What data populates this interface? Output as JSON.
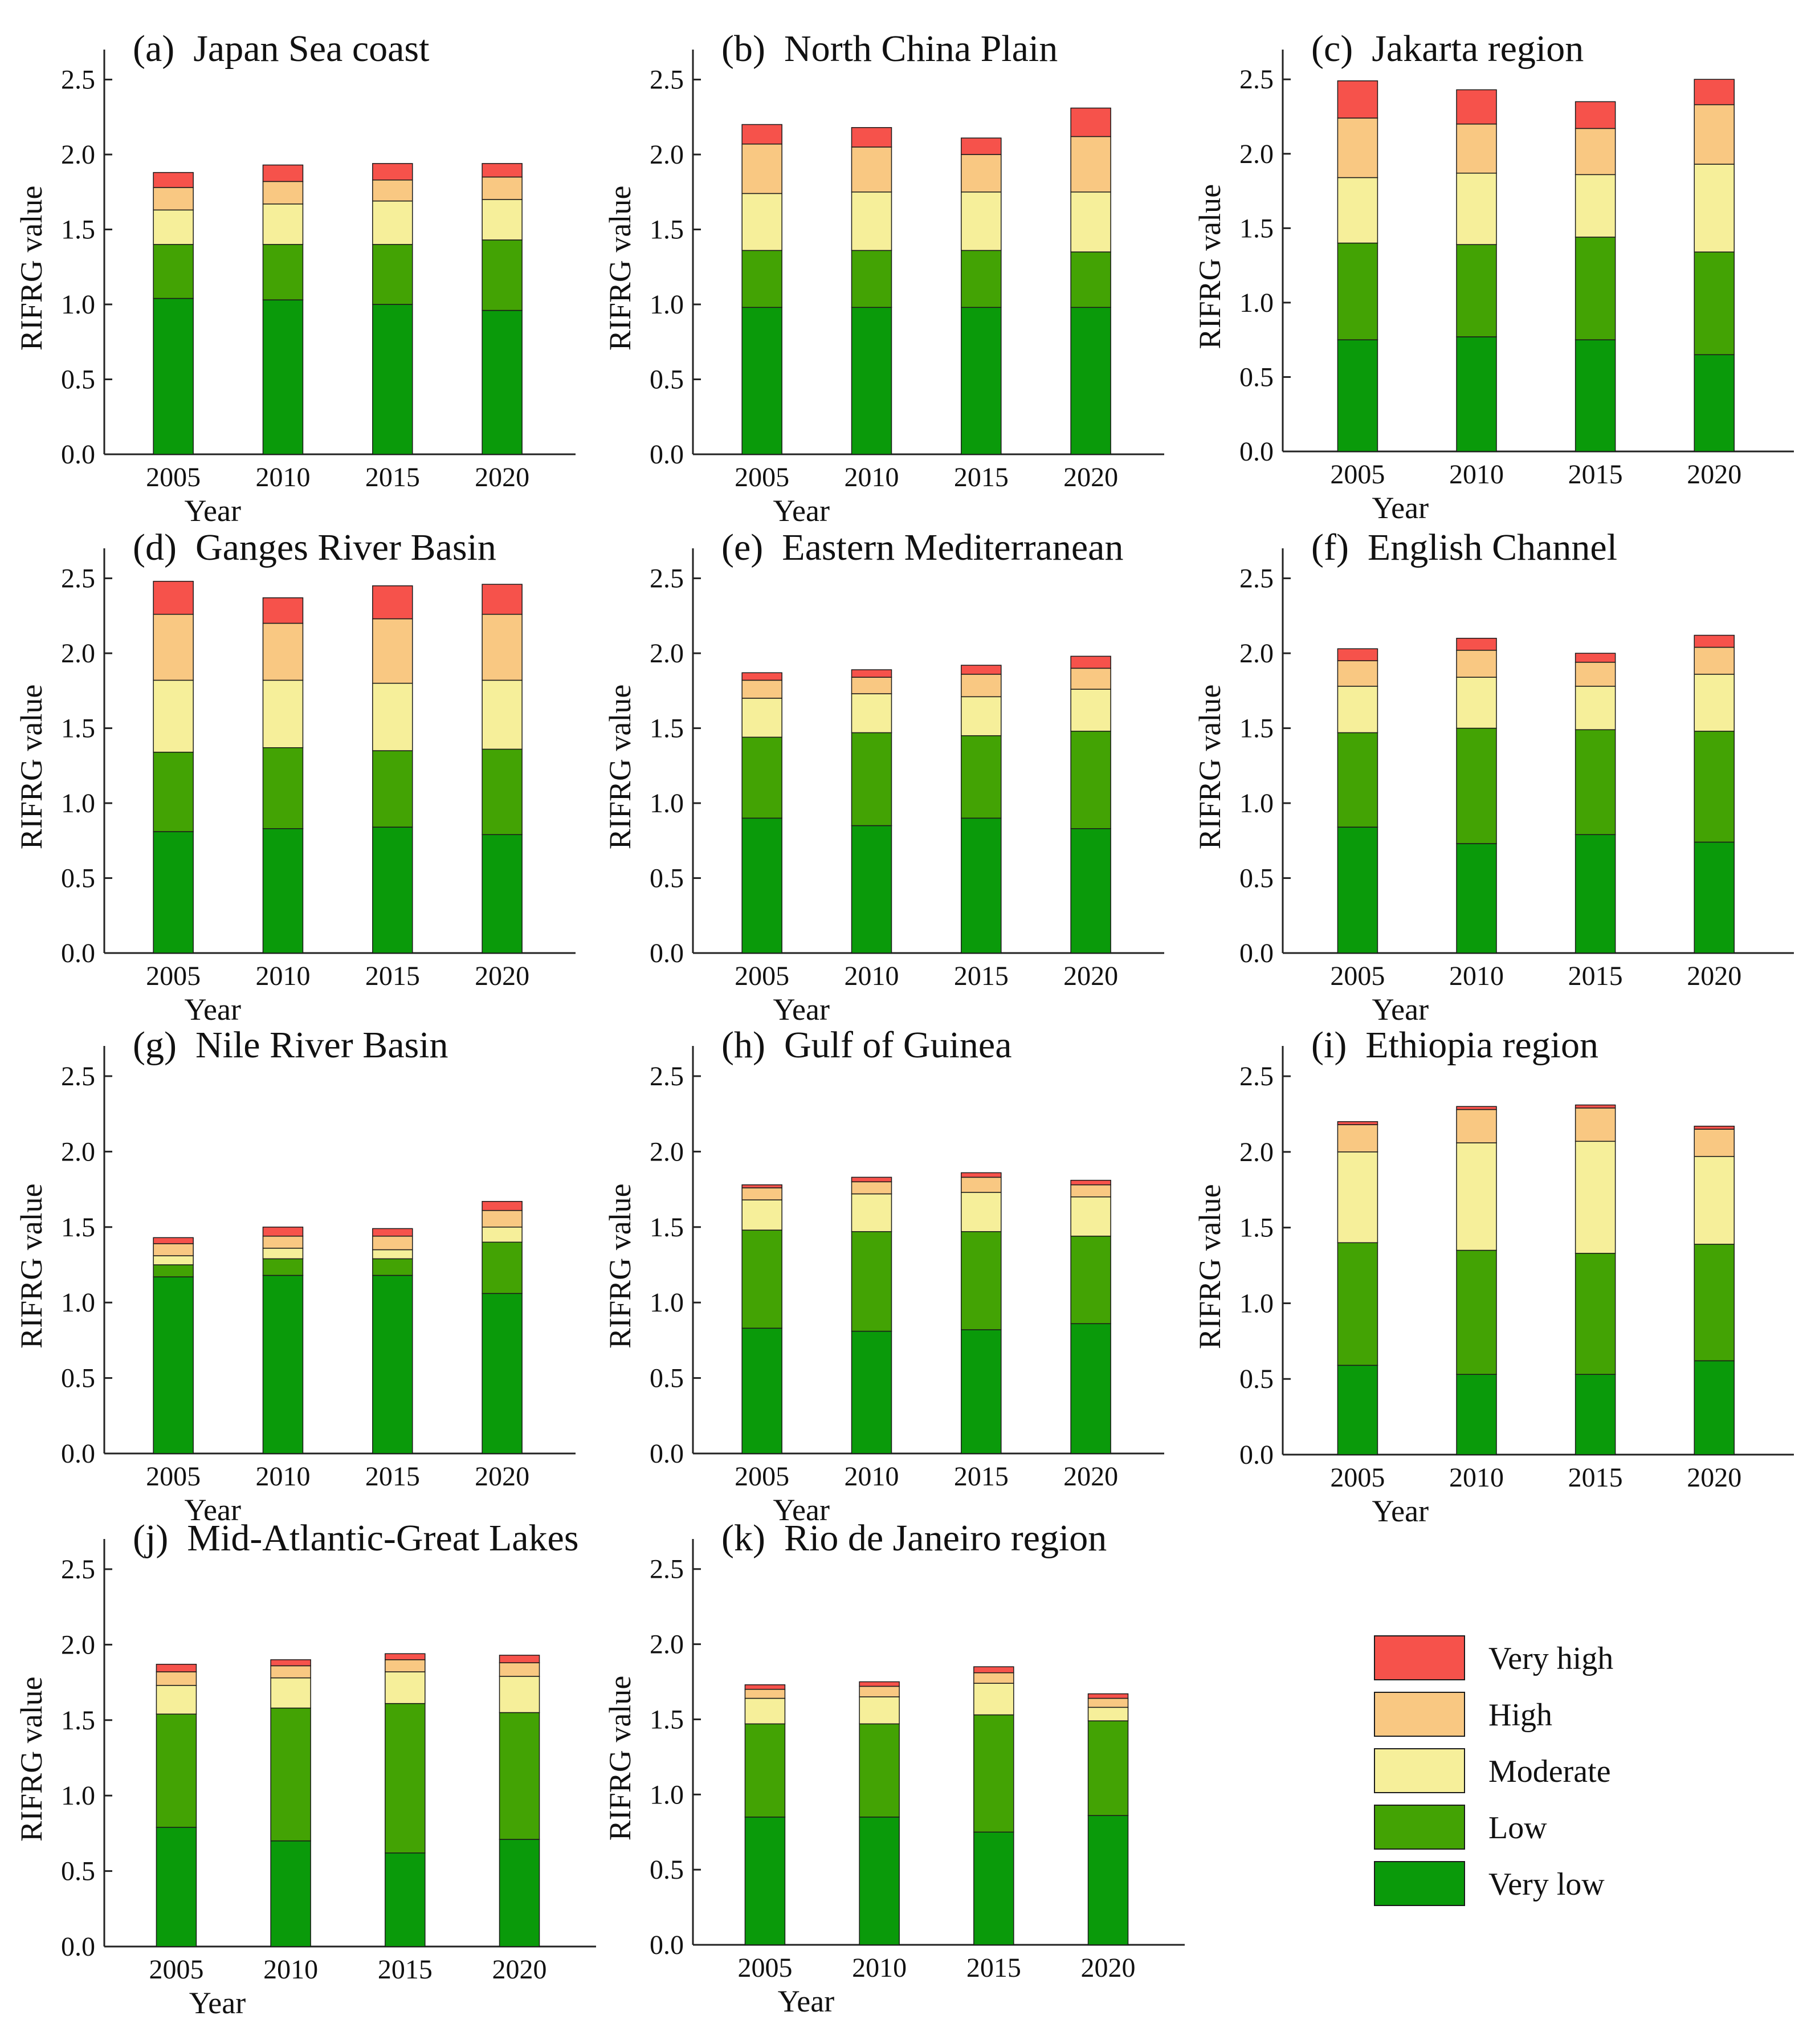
{
  "figure": {
    "stack_order": [
      "Very low",
      "Low",
      "Moderate",
      "High",
      "Very high"
    ],
    "colors": {
      "Very low": "#0a9a0a",
      "Low": "#43a304",
      "Moderate": "#f6ef9a",
      "High": "#f9c882",
      "Very high": "#f6524b"
    },
    "legend": [
      {
        "label": "Very high",
        "color": "#f6524b"
      },
      {
        "label": "High",
        "color": "#f9c882"
      },
      {
        "label": "Moderate",
        "color": "#f6ef9a"
      },
      {
        "label": "Low",
        "color": "#43a304"
      },
      {
        "label": "Very low",
        "color": "#0a9a0a"
      }
    ]
  },
  "chart_data": [
    {
      "type": "bar",
      "stacked": true,
      "title": "(a)  Japan Sea coast",
      "xlabel": "Year",
      "ylabel": "RIFRG value",
      "ylim": [
        0,
        2.7
      ],
      "yticks": [
        "0.0",
        "0.5",
        "1.0",
        "1.5",
        "2.0",
        "2.5"
      ],
      "categories": [
        "2005",
        "2010",
        "2015",
        "2020"
      ],
      "series": [
        {
          "name": "Very low",
          "values": [
            1.04,
            1.03,
            1.0,
            0.96
          ]
        },
        {
          "name": "Low",
          "values": [
            0.36,
            0.37,
            0.4,
            0.47
          ]
        },
        {
          "name": "Moderate",
          "values": [
            0.23,
            0.27,
            0.29,
            0.27
          ]
        },
        {
          "name": "High",
          "values": [
            0.15,
            0.15,
            0.14,
            0.15
          ]
        },
        {
          "name": "Very high",
          "values": [
            0.1,
            0.11,
            0.11,
            0.09
          ]
        }
      ]
    },
    {
      "type": "bar",
      "stacked": true,
      "title": "(b)  North China Plain",
      "xlabel": "Year",
      "ylabel": "RIFRG value",
      "ylim": [
        0,
        2.7
      ],
      "yticks": [
        "0.0",
        "0.5",
        "1.0",
        "1.5",
        "2.0",
        "2.5"
      ],
      "categories": [
        "2005",
        "2010",
        "2015",
        "2020"
      ],
      "series": [
        {
          "name": "Very low",
          "values": [
            0.98,
            0.98,
            0.98,
            0.98
          ]
        },
        {
          "name": "Low",
          "values": [
            0.38,
            0.38,
            0.38,
            0.37
          ]
        },
        {
          "name": "Moderate",
          "values": [
            0.38,
            0.39,
            0.39,
            0.4
          ]
        },
        {
          "name": "High",
          "values": [
            0.33,
            0.3,
            0.25,
            0.37
          ]
        },
        {
          "name": "Very high",
          "values": [
            0.13,
            0.13,
            0.11,
            0.19
          ]
        }
      ]
    },
    {
      "type": "bar",
      "stacked": true,
      "title": "(c)  Jakarta region",
      "xlabel": "Year",
      "ylabel": "RIFRG value",
      "ylim": [
        0,
        2.7
      ],
      "yticks": [
        "0.0",
        "0.5",
        "1.0",
        "1.5",
        "2.0",
        "2.5"
      ],
      "categories": [
        "2005",
        "2010",
        "2015",
        "2020"
      ],
      "series": [
        {
          "name": "Very low",
          "values": [
            0.75,
            0.77,
            0.75,
            0.65
          ]
        },
        {
          "name": "Low",
          "values": [
            0.65,
            0.62,
            0.69,
            0.69
          ]
        },
        {
          "name": "Moderate",
          "values": [
            0.44,
            0.48,
            0.42,
            0.59
          ]
        },
        {
          "name": "High",
          "values": [
            0.4,
            0.33,
            0.31,
            0.4
          ]
        },
        {
          "name": "Very high",
          "values": [
            0.25,
            0.23,
            0.18,
            0.17
          ]
        }
      ]
    },
    {
      "type": "bar",
      "stacked": true,
      "title": "(d)  Ganges River Basin",
      "xlabel": "Year",
      "ylabel": "RIFRG value",
      "ylim": [
        0,
        2.7
      ],
      "yticks": [
        "0.0",
        "0.5",
        "1.0",
        "1.5",
        "2.0",
        "2.5"
      ],
      "categories": [
        "2005",
        "2010",
        "2015",
        "2020"
      ],
      "series": [
        {
          "name": "Very low",
          "values": [
            0.81,
            0.83,
            0.84,
            0.79
          ]
        },
        {
          "name": "Low",
          "values": [
            0.53,
            0.54,
            0.51,
            0.57
          ]
        },
        {
          "name": "Moderate",
          "values": [
            0.48,
            0.45,
            0.45,
            0.46
          ]
        },
        {
          "name": "High",
          "values": [
            0.44,
            0.38,
            0.43,
            0.44
          ]
        },
        {
          "name": "Very high",
          "values": [
            0.22,
            0.17,
            0.22,
            0.2
          ]
        }
      ]
    },
    {
      "type": "bar",
      "stacked": true,
      "title": "(e)  Eastern Mediterranean",
      "xlabel": "Year",
      "ylabel": "RIFRG value",
      "ylim": [
        0,
        2.7
      ],
      "yticks": [
        "0.0",
        "0.5",
        "1.0",
        "1.5",
        "2.0",
        "2.5"
      ],
      "categories": [
        "2005",
        "2010",
        "2015",
        "2020"
      ],
      "series": [
        {
          "name": "Very low",
          "values": [
            0.9,
            0.85,
            0.9,
            0.83
          ]
        },
        {
          "name": "Low",
          "values": [
            0.54,
            0.62,
            0.55,
            0.65
          ]
        },
        {
          "name": "Moderate",
          "values": [
            0.26,
            0.26,
            0.26,
            0.28
          ]
        },
        {
          "name": "High",
          "values": [
            0.12,
            0.11,
            0.15,
            0.14
          ]
        },
        {
          "name": "Very high",
          "values": [
            0.05,
            0.05,
            0.06,
            0.08
          ]
        }
      ]
    },
    {
      "type": "bar",
      "stacked": true,
      "title": "(f)  English Channel",
      "xlabel": "Year",
      "ylabel": "RIFRG value",
      "ylim": [
        0,
        2.7
      ],
      "yticks": [
        "0.0",
        "0.5",
        "1.0",
        "1.5",
        "2.0",
        "2.5"
      ],
      "categories": [
        "2005",
        "2010",
        "2015",
        "2020"
      ],
      "series": [
        {
          "name": "Very low",
          "values": [
            0.84,
            0.73,
            0.79,
            0.74
          ]
        },
        {
          "name": "Low",
          "values": [
            0.63,
            0.77,
            0.7,
            0.74
          ]
        },
        {
          "name": "Moderate",
          "values": [
            0.31,
            0.34,
            0.29,
            0.38
          ]
        },
        {
          "name": "High",
          "values": [
            0.17,
            0.18,
            0.16,
            0.18
          ]
        },
        {
          "name": "Very high",
          "values": [
            0.08,
            0.08,
            0.06,
            0.08
          ]
        }
      ]
    },
    {
      "type": "bar",
      "stacked": true,
      "title": "(g)  Nile River Basin",
      "xlabel": "Year",
      "ylabel": "RIFRG value",
      "ylim": [
        0,
        2.7
      ],
      "yticks": [
        "0.0",
        "0.5",
        "1.0",
        "1.5",
        "2.0",
        "2.5"
      ],
      "categories": [
        "2005",
        "2010",
        "2015",
        "2020"
      ],
      "series": [
        {
          "name": "Very low",
          "values": [
            1.17,
            1.18,
            1.18,
            1.06
          ]
        },
        {
          "name": "Low",
          "values": [
            0.08,
            0.11,
            0.11,
            0.34
          ]
        },
        {
          "name": "Moderate",
          "values": [
            0.06,
            0.07,
            0.06,
            0.1
          ]
        },
        {
          "name": "High",
          "values": [
            0.08,
            0.08,
            0.09,
            0.11
          ]
        },
        {
          "name": "Very high",
          "values": [
            0.04,
            0.06,
            0.05,
            0.06
          ]
        }
      ]
    },
    {
      "type": "bar",
      "stacked": true,
      "title": "(h)  Gulf of Guinea",
      "xlabel": "Year",
      "ylabel": "RIFRG value",
      "ylim": [
        0,
        2.7
      ],
      "yticks": [
        "0.0",
        "0.5",
        "1.0",
        "1.5",
        "2.0",
        "2.5"
      ],
      "categories": [
        "2005",
        "2010",
        "2015",
        "2020"
      ],
      "series": [
        {
          "name": "Very low",
          "values": [
            0.83,
            0.81,
            0.82,
            0.86
          ]
        },
        {
          "name": "Low",
          "values": [
            0.65,
            0.66,
            0.65,
            0.58
          ]
        },
        {
          "name": "Moderate",
          "values": [
            0.2,
            0.25,
            0.26,
            0.26
          ]
        },
        {
          "name": "High",
          "values": [
            0.08,
            0.08,
            0.1,
            0.08
          ]
        },
        {
          "name": "Very high",
          "values": [
            0.02,
            0.03,
            0.03,
            0.03
          ]
        }
      ]
    },
    {
      "type": "bar",
      "stacked": true,
      "title": "(i)  Ethiopia region",
      "xlabel": "Year",
      "ylabel": "RIFRG value",
      "ylim": [
        0,
        2.7
      ],
      "yticks": [
        "0.0",
        "0.5",
        "1.0",
        "1.5",
        "2.0",
        "2.5"
      ],
      "categories": [
        "2005",
        "2010",
        "2015",
        "2020"
      ],
      "series": [
        {
          "name": "Very low",
          "values": [
            0.59,
            0.53,
            0.53,
            0.62
          ]
        },
        {
          "name": "Low",
          "values": [
            0.81,
            0.82,
            0.8,
            0.77
          ]
        },
        {
          "name": "Moderate",
          "values": [
            0.6,
            0.71,
            0.74,
            0.58
          ]
        },
        {
          "name": "High",
          "values": [
            0.18,
            0.22,
            0.22,
            0.18
          ]
        },
        {
          "name": "Very high",
          "values": [
            0.02,
            0.02,
            0.02,
            0.02
          ]
        }
      ]
    },
    {
      "type": "bar",
      "stacked": true,
      "title": "(j)  Mid-Atlantic-Great Lakes",
      "xlabel": "Year",
      "ylabel": "RIFRG value",
      "ylim": [
        0,
        2.7
      ],
      "yticks": [
        "0.0",
        "0.5",
        "1.0",
        "1.5",
        "2.0",
        "2.5"
      ],
      "categories": [
        "2005",
        "2010",
        "2015",
        "2020"
      ],
      "series": [
        {
          "name": "Very low",
          "values": [
            0.79,
            0.7,
            0.62,
            0.71
          ]
        },
        {
          "name": "Low",
          "values": [
            0.75,
            0.88,
            0.99,
            0.84
          ]
        },
        {
          "name": "Moderate",
          "values": [
            0.19,
            0.2,
            0.21,
            0.24
          ]
        },
        {
          "name": "High",
          "values": [
            0.09,
            0.08,
            0.08,
            0.09
          ]
        },
        {
          "name": "Very high",
          "values": [
            0.05,
            0.04,
            0.04,
            0.05
          ]
        }
      ]
    },
    {
      "type": "bar",
      "stacked": true,
      "title": "(k)  Rio de Janeiro region",
      "xlabel": "Year",
      "ylabel": "RIFRG value",
      "ylim": [
        0,
        2.7
      ],
      "yticks": [
        "0.0",
        "0.5",
        "1.0",
        "1.5",
        "2.0",
        "2.5"
      ],
      "categories": [
        "2005",
        "2010",
        "2015",
        "2020"
      ],
      "series": [
        {
          "name": "Very low",
          "values": [
            0.85,
            0.85,
            0.75,
            0.86
          ]
        },
        {
          "name": "Low",
          "values": [
            0.62,
            0.62,
            0.78,
            0.63
          ]
        },
        {
          "name": "Moderate",
          "values": [
            0.17,
            0.18,
            0.21,
            0.09
          ]
        },
        {
          "name": "High",
          "values": [
            0.06,
            0.07,
            0.07,
            0.06
          ]
        },
        {
          "name": "Very high",
          "values": [
            0.03,
            0.03,
            0.04,
            0.03
          ]
        }
      ]
    }
  ]
}
